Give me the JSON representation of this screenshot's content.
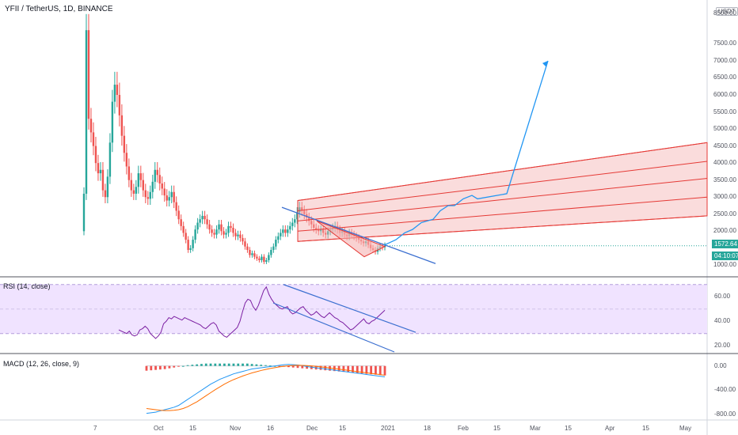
{
  "header": {
    "symbol": "YFII / TetherUS, 1D, BINANCE"
  },
  "currency_badge": "USDT",
  "price_axis_labels": [
    "8500.00",
    "7500.00",
    "7000.00",
    "6500.00",
    "6000.00",
    "5500.00",
    "5000.00",
    "4500.00",
    "4000.00",
    "3500.00",
    "3000.00",
    "2500.00",
    "2000.00",
    "1000.00"
  ],
  "last_price": {
    "value": "1572.64",
    "countdown": "04:10:07"
  },
  "time_axis_labels": [
    "7",
    "Oct",
    "15",
    "Nov",
    "16",
    "Dec",
    "15",
    "2021",
    "18",
    "Feb",
    "15",
    "Mar",
    "15",
    "Apr",
    "15",
    "May"
  ],
  "rsi_panel": {
    "title": "RSI (14, close)",
    "axis_labels": [
      "60.00",
      "40.00",
      "20.00"
    ]
  },
  "macd_panel": {
    "title": "MACD (12, 26, close, 9)",
    "axis_labels": [
      "0.00",
      "-400.00",
      "-800.00"
    ]
  },
  "colors": {
    "up": "#26a69a",
    "down": "#ef5350",
    "drawing_line": "#3b6fd0",
    "channel": "#f5b2b2",
    "forecast": "#2196f3",
    "rsi_line": "#7b1fa2",
    "rsi_band": "#f0e3ff",
    "macd_line": "#2196f3",
    "signal_line": "#ff6d00",
    "last_price_badge": "#26a69a"
  },
  "chart_data": {
    "type": "candlestick",
    "price": {
      "ylim": [
        800,
        8600
      ],
      "close": [
        3100,
        7900,
        5300,
        4900,
        4500,
        4000,
        3700,
        3800,
        3200,
        3000,
        3600,
        4600,
        5800,
        6300,
        6000,
        5400,
        4800,
        4300,
        3900,
        3500,
        3200,
        3100,
        3300,
        3700,
        3500,
        3200,
        3000,
        2950,
        3150,
        3450,
        3800,
        3650,
        3400,
        3250,
        3050,
        2900,
        3000,
        3150,
        2850,
        2600,
        2350,
        2150,
        1950,
        1750,
        1450,
        1500,
        1750,
        2050,
        2250,
        2350,
        2450,
        2350,
        2200,
        2050,
        1950,
        1900,
        2050,
        2200,
        2000,
        1900,
        1950,
        2150,
        2100,
        1950,
        1850,
        1900,
        1800,
        1700,
        1550,
        1450,
        1300,
        1350,
        1250,
        1200,
        1150,
        1250,
        1100,
        1150,
        1300,
        1450,
        1550,
        1750,
        1850,
        1950,
        2050,
        1950,
        2050,
        2150,
        2250,
        2350,
        2550,
        2700,
        2600,
        2500,
        2400,
        2300,
        2200,
        2100,
        2050,
        2000,
        2050,
        1950,
        1900,
        2000,
        2050,
        2100,
        2150,
        2050,
        1950,
        2000,
        1900,
        1850,
        1950,
        1900,
        1850,
        1800,
        1750,
        1700,
        1650,
        1700,
        1600,
        1500,
        1450,
        1400,
        1500,
        1550,
        1530,
        1572.64
      ],
      "channel": {
        "start_date": "Dec 1",
        "end_date": "May 15",
        "levels": [
          [
            1700,
            2450
          ],
          [
            2000,
            3000
          ],
          [
            2300,
            3550
          ],
          [
            2600,
            4050
          ],
          [
            2900,
            4600
          ]
        ]
      },
      "downtrend_line": [
        [
          1800,
          2700
        ],
        [
          2200,
          1050
        ]
      ],
      "forecast_path": [
        1600,
        1750,
        1950,
        2050,
        2250,
        2350,
        2600,
        2750,
        2750,
        2950,
        3050,
        2950,
        3100,
        7000
      ]
    },
    "rsi": {
      "ylim": [
        15,
        75
      ],
      "values": [
        33,
        32,
        31,
        30,
        32,
        29,
        28,
        29,
        33,
        34,
        36,
        34,
        30,
        28,
        26,
        28,
        31,
        38,
        40,
        43,
        42,
        44,
        43,
        42,
        41,
        43,
        42,
        41,
        40,
        39,
        38,
        37,
        35,
        34,
        36,
        38,
        39,
        37,
        32,
        30,
        28,
        27,
        29,
        31,
        33,
        35,
        40,
        48,
        55,
        58,
        57,
        52,
        49,
        53,
        59,
        65,
        68,
        62,
        58,
        55,
        53,
        51,
        50,
        51,
        52,
        48,
        46,
        47,
        49,
        51,
        52,
        49,
        47,
        45,
        46,
        48,
        46,
        44,
        43,
        45,
        47,
        45,
        43,
        42,
        40,
        39,
        37,
        35,
        33,
        34,
        36,
        38,
        40,
        42,
        39,
        38,
        40,
        41,
        43,
        45,
        47,
        49
      ]
    },
    "macd": {
      "ylim": [
        -850,
        100
      ],
      "macd": [
        -780,
        -770,
        -760,
        -740,
        -720,
        -700,
        -680,
        -650,
        -600,
        -550,
        -500,
        -450,
        -400,
        -350,
        -300,
        -260,
        -220,
        -190,
        -160,
        -130,
        -110,
        -90,
        -70,
        -50,
        -40,
        -30,
        -20,
        -10,
        0,
        10,
        20,
        25,
        20,
        15,
        5,
        -10,
        -20,
        -30,
        -40,
        -50,
        -60,
        -70,
        -80,
        -90,
        -100,
        -110,
        -120,
        -130,
        -140,
        -150,
        -160,
        -170,
        -180
      ],
      "signal": [
        -700,
        -710,
        -720,
        -730,
        -735,
        -735,
        -730,
        -720,
        -700,
        -670,
        -630,
        -590,
        -540,
        -490,
        -440,
        -390,
        -345,
        -300,
        -260,
        -225,
        -195,
        -165,
        -140,
        -115,
        -95,
        -75,
        -58,
        -42,
        -28,
        -15,
        -5,
        3,
        8,
        10,
        9,
        5,
        0,
        -7,
        -15,
        -24,
        -33,
        -43,
        -53,
        -63,
        -73,
        -83,
        -93,
        -103,
        -113,
        -123,
        -133,
        -143,
        -153
      ],
      "histogram": [
        -60,
        -55,
        -50,
        -45,
        -40,
        -30,
        -20,
        -10,
        0,
        10,
        15,
        20,
        25,
        30,
        30,
        30,
        30,
        30,
        30,
        30,
        30,
        30,
        30,
        25,
        20,
        15,
        10,
        5,
        0,
        -5,
        -10,
        -15,
        -20,
        -25,
        -30,
        -35,
        -40,
        -45,
        -50,
        -55,
        -60,
        -65,
        -70,
        -75,
        -80,
        -85,
        -90,
        -95,
        -100,
        -105,
        -110,
        -115,
        -120
      ]
    }
  }
}
